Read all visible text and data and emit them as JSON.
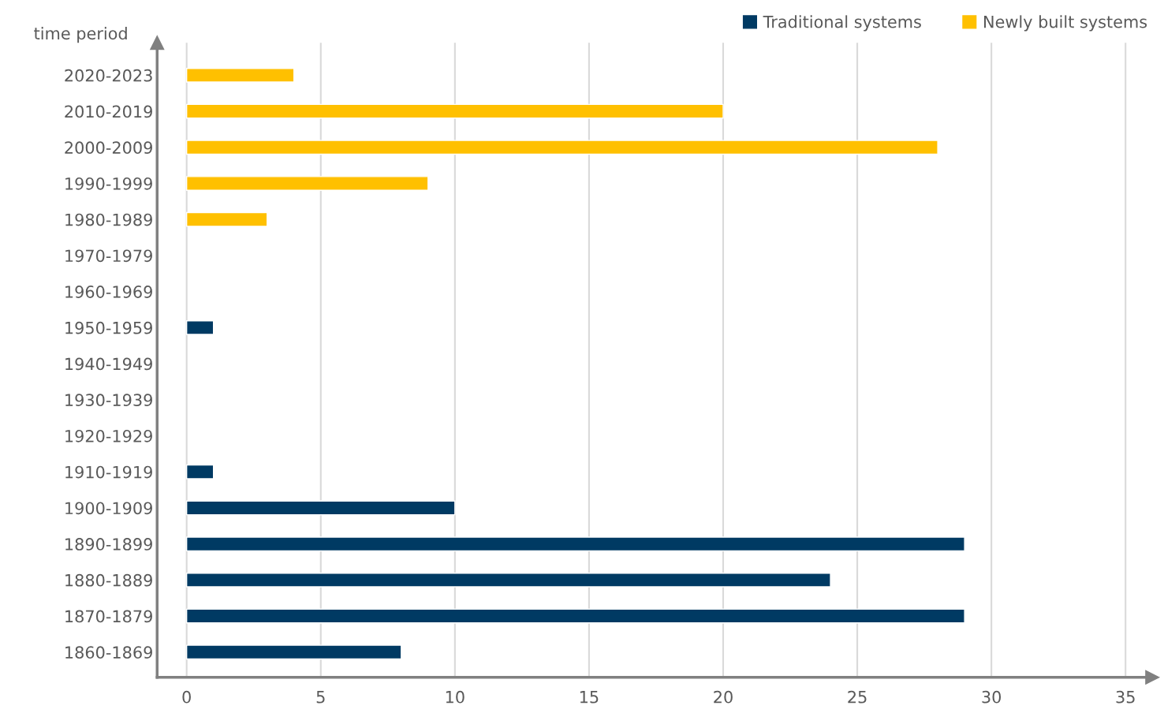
{
  "chart_data": {
    "type": "bar",
    "orientation": "horizontal",
    "ylabel": "time period",
    "categories": [
      "2020-2023",
      "2010-2019",
      "2000-2009",
      "1990-1999",
      "1980-1989",
      "1970-1979",
      "1960-1969",
      "1950-1959",
      "1940-1949",
      "1930-1939",
      "1920-1929",
      "1910-1919",
      "1900-1909",
      "1890-1899",
      "1880-1889",
      "1870-1879",
      "1860-1869"
    ],
    "series": [
      {
        "name": "Traditional systems",
        "color": "#003a63",
        "values": [
          null,
          null,
          null,
          null,
          null,
          null,
          null,
          1,
          null,
          null,
          null,
          1,
          10,
          29,
          24,
          29,
          8
        ]
      },
      {
        "name": "Newly built systems",
        "color": "#ffc000",
        "values": [
          4,
          20,
          28,
          9,
          3,
          null,
          null,
          null,
          null,
          null,
          null,
          null,
          null,
          null,
          null,
          null,
          null
        ]
      }
    ],
    "xlim": [
      -1.1,
      36
    ],
    "xticks": [
      0,
      5,
      10,
      15,
      20,
      25,
      30,
      35
    ],
    "grid": "x",
    "legend": "top right"
  }
}
